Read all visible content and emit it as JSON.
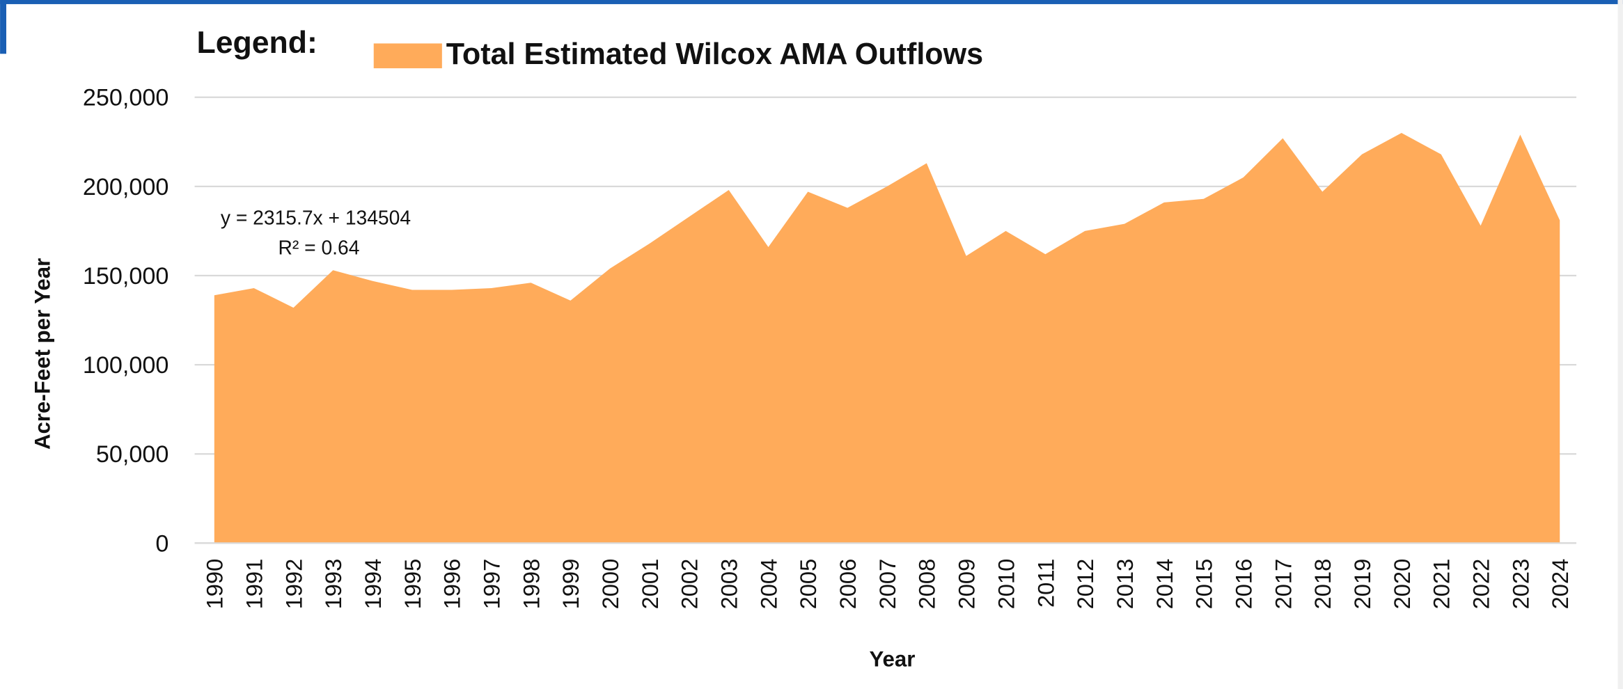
{
  "chart_data": {
    "type": "area",
    "legend_title": "Legend:",
    "x_label": "Year",
    "y_label": "Acre-Feet per Year",
    "annotations": [
      "y = 2315.7x + 134504",
      "R² = 0.64"
    ],
    "categories": [
      "1990",
      "1991",
      "1992",
      "1993",
      "1994",
      "1995",
      "1996",
      "1997",
      "1998",
      "1999",
      "2000",
      "2001",
      "2002",
      "2003",
      "2004",
      "2005",
      "2006",
      "2007",
      "2008",
      "2009",
      "2010",
      "2011",
      "2012",
      "2013",
      "2014",
      "2015",
      "2016",
      "2017",
      "2018",
      "2019",
      "2020",
      "2021",
      "2022",
      "2023",
      "2024"
    ],
    "series": [
      {
        "name": "Total Estimated Wilcox AMA Outflows",
        "color": "#ffab5a",
        "values": [
          139000,
          143000,
          132000,
          153000,
          147000,
          142000,
          142000,
          143000,
          146000,
          136000,
          154000,
          168000,
          183000,
          198000,
          166000,
          197000,
          188000,
          200000,
          213000,
          161000,
          175000,
          162000,
          175000,
          179000,
          191000,
          193000,
          205000,
          227000,
          197000,
          218000,
          230000,
          218000,
          178000,
          229000,
          181000
        ]
      }
    ],
    "ylim": [
      0,
      250000
    ],
    "yticks": [
      0,
      {
        "value": 50000,
        "label": "50,000"
      },
      {
        "value": 100000,
        "label": "100,000"
      },
      {
        "value": 150000,
        "label": "150,000"
      },
      {
        "value": 200000,
        "label": "200,000"
      },
      {
        "value": 250000,
        "label": "250,000"
      }
    ],
    "grid": true
  }
}
